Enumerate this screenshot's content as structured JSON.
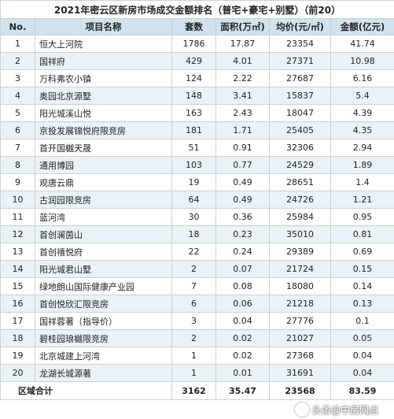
{
  "title": "2021年密云区新房市场成交金额排名（普宅+豪宅+别墅）（前20）",
  "headers": [
    "No.",
    "项目名称",
    "套数",
    "面积(万㎡)",
    "均价(元/㎡)",
    "金额(亿元)"
  ],
  "rows": [
    {
      "no": "1",
      "name": "恒大上河院",
      "units": "1786",
      "area": "17.87",
      "price": "23354",
      "amount": "41.74"
    },
    {
      "no": "2",
      "name": "国祥府",
      "units": "429",
      "area": "4.01",
      "price": "27371",
      "amount": "10.98"
    },
    {
      "no": "3",
      "name": "万科弗农小镇",
      "units": "124",
      "area": "2.22",
      "price": "27687",
      "amount": "6.16"
    },
    {
      "no": "4",
      "name": "奥园北京源墅",
      "units": "148",
      "area": "3.41",
      "price": "15837",
      "amount": "5.4"
    },
    {
      "no": "5",
      "name": "阳光城溪山悦",
      "units": "163",
      "area": "2.43",
      "price": "18047",
      "amount": "4.39"
    },
    {
      "no": "6",
      "name": "京投发展锦悦府限竞房",
      "units": "181",
      "area": "1.71",
      "price": "25405",
      "amount": "4.35"
    },
    {
      "no": "7",
      "name": "首开国樾天晟",
      "units": "51",
      "area": "0.91",
      "price": "32306",
      "amount": "2.94"
    },
    {
      "no": "8",
      "name": "通用博园",
      "units": "103",
      "area": "0.77",
      "price": "24529",
      "amount": "1.89"
    },
    {
      "no": "9",
      "name": "观唐云鼎",
      "units": "19",
      "area": "0.49",
      "price": "28651",
      "amount": "1.4"
    },
    {
      "no": "10",
      "name": "古润园限竞房",
      "units": "64",
      "area": "0.49",
      "price": "24726",
      "amount": "1.21"
    },
    {
      "no": "11",
      "name": "蓝河湾",
      "units": "30",
      "area": "0.36",
      "price": "25984",
      "amount": "0.95"
    },
    {
      "no": "12",
      "name": "首创澜茵山",
      "units": "18",
      "area": "0.23",
      "price": "35010",
      "amount": "0.81"
    },
    {
      "no": "13",
      "name": "首创禧悦府",
      "units": "22",
      "area": "0.24",
      "price": "29389",
      "amount": "0.69"
    },
    {
      "no": "14",
      "name": "阳光城君山墅",
      "units": "2",
      "area": "0.07",
      "price": "21724",
      "amount": "0.15"
    },
    {
      "no": "15",
      "name": "绿地朗山国际健康产业园",
      "units": "7",
      "area": "0.08",
      "price": "18080",
      "amount": "0.14"
    },
    {
      "no": "16",
      "name": "首创悦欣汇限竞房",
      "units": "6",
      "area": "0.06",
      "price": "21218",
      "amount": "0.13"
    },
    {
      "no": "17",
      "name": "国祥蓉著（指导价）",
      "units": "3",
      "area": "0.04",
      "price": "27776",
      "amount": "0.1"
    },
    {
      "no": "18",
      "name": "碧桂园琅樾限竞房",
      "units": "2",
      "area": "0.02",
      "price": "21027",
      "amount": "0.05"
    },
    {
      "no": "19",
      "name": "北京城建上河湾",
      "units": "1",
      "area": "0.02",
      "price": "27368",
      "amount": "0.04"
    },
    {
      "no": "20",
      "name": "龙湖长城源著",
      "units": "1",
      "area": "0.01",
      "price": "31691",
      "amount": "0.04"
    }
  ],
  "total": {
    "label": "区域合计",
    "units": "3162",
    "area": "35.47",
    "price": "23568",
    "amount": "83.59"
  },
  "watermark": "头条@中房网点",
  "colors": {
    "header_bg": "#cfe3f0",
    "stripe_bg": "#e8f2f8",
    "border": "#c8d4c8"
  }
}
